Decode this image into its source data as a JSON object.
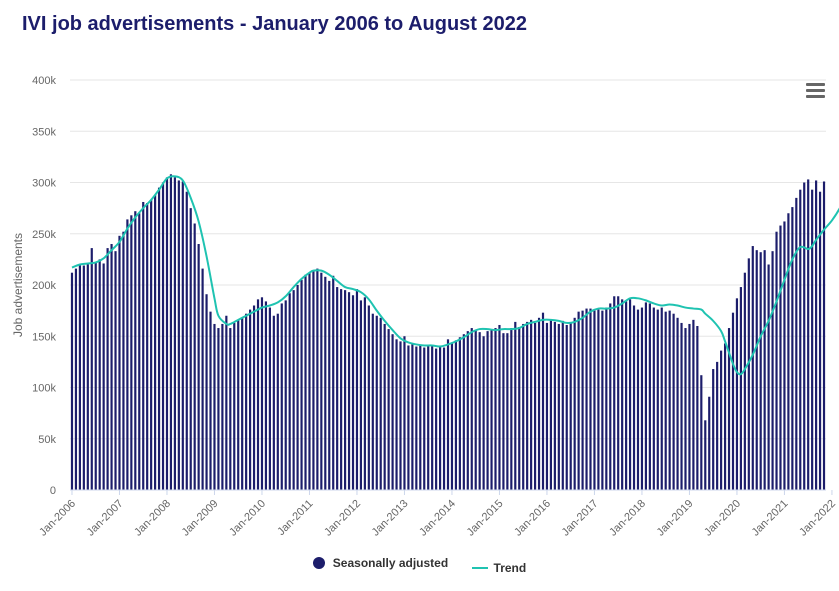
{
  "chart_data": {
    "type": "bar",
    "title": "IVI job advertisements - January 2006 to August 2022",
    "xlabel": "",
    "ylabel": "Job advertisements",
    "ylim": [
      0,
      400000
    ],
    "y_ticks": [
      "0",
      "50k",
      "100k",
      "150k",
      "200k",
      "250k",
      "300k",
      "350k",
      "400k"
    ],
    "x_ticks": [
      "Jan-2006",
      "Jan-2007",
      "Jan-2008",
      "Jan-2009",
      "Jan-2010",
      "Jan-2011",
      "Jan-2012",
      "Jan-2013",
      "Jan-2014",
      "Jan-2015",
      "Jan-2016",
      "Jan-2017",
      "Jan-2018",
      "Jan-2019",
      "Jan-2020",
      "Jan-2021",
      "Jan-2022"
    ],
    "start": "Jan-2006",
    "end": "Aug-2022",
    "series": [
      {
        "name": "Seasonally adjusted",
        "type": "bar",
        "color": "#1c1d6b",
        "values": [
          212000,
          216000,
          219000,
          219000,
          220000,
          236000,
          222000,
          225000,
          221000,
          236000,
          240000,
          233000,
          248000,
          252000,
          264000,
          268000,
          272000,
          270000,
          281000,
          280000,
          283000,
          288000,
          295000,
          300000,
          305000,
          308000,
          305000,
          302000,
          301000,
          291000,
          275000,
          260000,
          240000,
          216000,
          191000,
          174000,
          162000,
          158000,
          162000,
          170000,
          158000,
          163000,
          166000,
          168000,
          172000,
          176000,
          180000,
          186000,
          188000,
          184000,
          178000,
          170000,
          172000,
          182000,
          185000,
          192000,
          195000,
          200000,
          205000,
          210000,
          212000,
          214000,
          216000,
          212000,
          208000,
          204000,
          209000,
          198000,
          196000,
          195000,
          193000,
          190000,
          196000,
          185000,
          188000,
          180000,
          172000,
          170000,
          168000,
          162000,
          157000,
          152000,
          147000,
          145000,
          150000,
          141000,
          142000,
          140000,
          141000,
          139000,
          141000,
          140000,
          138000,
          141000,
          139000,
          147000,
          144000,
          146000,
          149000,
          152000,
          155000,
          158000,
          156000,
          154000,
          150000,
          155000,
          157000,
          158000,
          161000,
          153000,
          153000,
          158000,
          164000,
          159000,
          162000,
          164000,
          166000,
          163000,
          168000,
          173000,
          163000,
          166000,
          164000,
          162000,
          165000,
          161000,
          163000,
          168000,
          174000,
          175000,
          177000,
          177000,
          175000,
          176000,
          175000,
          178000,
          182000,
          189000,
          189000,
          186000,
          184000,
          186000,
          180000,
          176000,
          178000,
          183000,
          182000,
          178000,
          176000,
          178000,
          174000,
          175000,
          172000,
          168000,
          163000,
          158000,
          162000,
          166000,
          160000,
          112000,
          68000,
          91000,
          118000,
          125000,
          136000,
          143000,
          158000,
          173000,
          187000,
          198000,
          212000,
          226000,
          238000,
          234000,
          232000,
          234000,
          220000,
          233000,
          252000,
          258000,
          262000,
          270000,
          276000,
          285000,
          293000,
          300000,
          303000,
          293000,
          302000,
          291000,
          301000
        ]
      },
      {
        "name": "Trend",
        "type": "line",
        "color": "#1fc3b1",
        "points": [
          [
            0,
            217000
          ],
          [
            2,
            220000
          ],
          [
            4,
            221000
          ],
          [
            6,
            222000
          ],
          [
            8,
            226000
          ],
          [
            10,
            234000
          ],
          [
            12,
            242000
          ],
          [
            14,
            255000
          ],
          [
            16,
            266000
          ],
          [
            18,
            275000
          ],
          [
            20,
            283000
          ],
          [
            22,
            293000
          ],
          [
            24,
            304000
          ],
          [
            26,
            306000
          ],
          [
            28,
            302000
          ],
          [
            30,
            285000
          ],
          [
            32,
            262000
          ],
          [
            34,
            228000
          ],
          [
            36,
            187000
          ],
          [
            37,
            170000
          ],
          [
            39,
            162000
          ],
          [
            40,
            162000
          ],
          [
            42,
            166000
          ],
          [
            44,
            170000
          ],
          [
            46,
            174000
          ],
          [
            48,
            178000
          ],
          [
            50,
            180000
          ],
          [
            52,
            183000
          ],
          [
            54,
            189000
          ],
          [
            56,
            198000
          ],
          [
            58,
            206000
          ],
          [
            60,
            212000
          ],
          [
            61,
            214000
          ],
          [
            63,
            214000
          ],
          [
            65,
            210000
          ],
          [
            67,
            204000
          ],
          [
            69,
            198000
          ],
          [
            71,
            196000
          ],
          [
            73,
            193000
          ],
          [
            75,
            186000
          ],
          [
            77,
            175000
          ],
          [
            79,
            165000
          ],
          [
            81,
            156000
          ],
          [
            83,
            148000
          ],
          [
            85,
            144000
          ],
          [
            87,
            142000
          ],
          [
            89,
            141000
          ],
          [
            91,
            141000
          ],
          [
            93,
            140000
          ],
          [
            95,
            142000
          ],
          [
            97,
            145000
          ],
          [
            99,
            149000
          ],
          [
            101,
            154000
          ],
          [
            103,
            157000
          ],
          [
            105,
            157000
          ],
          [
            107,
            156000
          ],
          [
            109,
            157000
          ],
          [
            111,
            157000
          ],
          [
            113,
            158000
          ],
          [
            115,
            162000
          ],
          [
            117,
            164000
          ],
          [
            119,
            166000
          ],
          [
            121,
            166000
          ],
          [
            123,
            165000
          ],
          [
            125,
            163000
          ],
          [
            127,
            164000
          ],
          [
            129,
            168000
          ],
          [
            131,
            174000
          ],
          [
            133,
            177000
          ],
          [
            135,
            177000
          ],
          [
            137,
            178000
          ],
          [
            139,
            182000
          ],
          [
            141,
            187000
          ],
          [
            143,
            187000
          ],
          [
            145,
            185000
          ],
          [
            147,
            182000
          ],
          [
            149,
            180000
          ],
          [
            151,
            181000
          ],
          [
            153,
            180000
          ],
          [
            155,
            178000
          ],
          [
            157,
            177000
          ],
          [
            159,
            176000
          ],
          [
            160,
            172000
          ],
          [
            162,
            165000
          ],
          [
            164,
            155000
          ],
          [
            165,
            145000
          ],
          [
            167,
            123000
          ],
          [
            168,
            115000
          ],
          [
            169,
            113000
          ],
          [
            170,
            118000
          ],
          [
            172,
            132000
          ],
          [
            174,
            150000
          ],
          [
            176,
            165000
          ],
          [
            178,
            184000
          ],
          [
            180,
            205000
          ],
          [
            182,
            225000
          ],
          [
            184,
            237000
          ],
          [
            186,
            235000
          ],
          [
            187,
            238000
          ],
          [
            188,
            244000
          ],
          [
            190,
            254000
          ],
          [
            192,
            263000
          ],
          [
            194,
            275000
          ],
          [
            196,
            291000
          ],
          [
            198,
            300000
          ],
          [
            199,
            302000
          ],
          [
            200,
            302000
          ]
        ]
      }
    ],
    "legend": [
      {
        "label": "Seasonally adjusted",
        "color": "#1c1d6b"
      },
      {
        "label": "Trend",
        "color": "#1fc3b1"
      }
    ]
  },
  "menu": {
    "icon": "hamburger-menu-icon"
  }
}
